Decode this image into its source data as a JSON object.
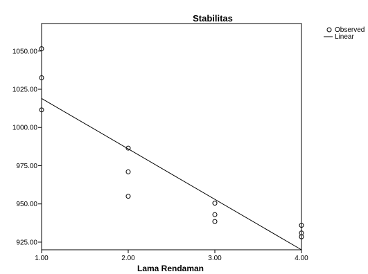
{
  "chart_data": {
    "type": "scatter",
    "title": "Stabilitas",
    "xlabel": "Lama Rendaman",
    "ylabel": "",
    "xlim": [
      1.0,
      4.0
    ],
    "ylim": [
      920.0,
      1068.0
    ],
    "x_ticks": [
      "1.00",
      "2.00",
      "3.00",
      "4.00"
    ],
    "y_ticks": [
      "925.00",
      "950.00",
      "975.00",
      "1000.00",
      "1025.00",
      "1050.00"
    ],
    "x_tick_values": [
      1.0,
      2.0,
      3.0,
      4.0
    ],
    "y_tick_values": [
      925.0,
      950.0,
      975.0,
      1000.0,
      1025.0,
      1050.0
    ],
    "grid": false,
    "legend_position": "top-right",
    "series": [
      {
        "name": "Observed",
        "kind": "points",
        "marker": "open-circle",
        "x": [
          1.0,
          1.0,
          1.0,
          2.0,
          2.0,
          2.0,
          3.0,
          3.0,
          3.0,
          4.0,
          4.0,
          4.0
        ],
        "y": [
          1051.5,
          1032.5,
          1011.5,
          986.5,
          971.0,
          955.0,
          950.5,
          943.0,
          938.5,
          936.0,
          931.0,
          928.5
        ]
      },
      {
        "name": "Linear",
        "kind": "line",
        "x": [
          1.0,
          4.0
        ],
        "y": [
          1019.0,
          920.0
        ]
      }
    ],
    "colors": {
      "line": "#000000",
      "marker": "#000000",
      "background": "#ffffff"
    }
  }
}
